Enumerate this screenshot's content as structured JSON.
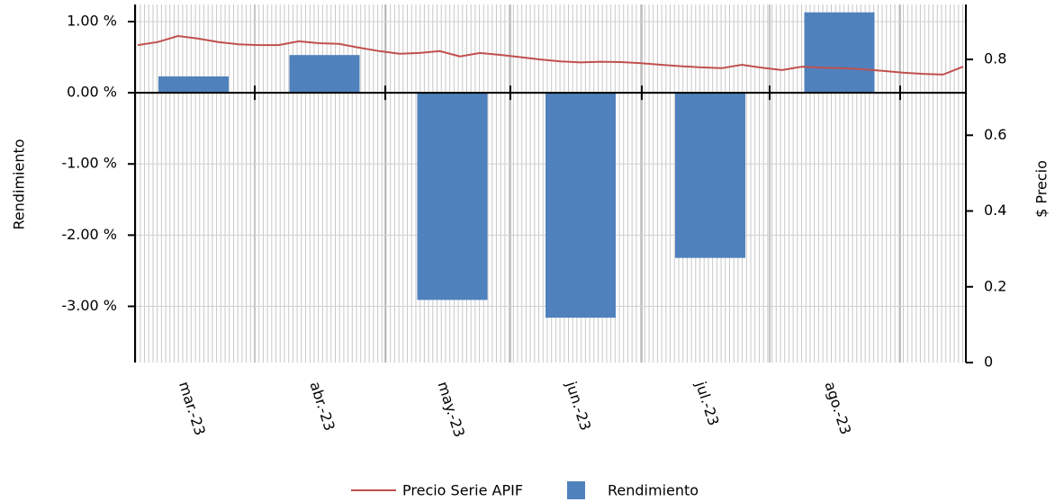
{
  "chart_data": {
    "type": "bar",
    "categories": [
      "mar.-23",
      "abr.-23",
      "may.-23",
      "jun.-23",
      "jul.-23",
      "ago.-23"
    ],
    "series": [
      {
        "name": "Rendimiento",
        "color": "#4f81bd",
        "values": [
          0.23,
          0.53,
          -2.91,
          -3.16,
          -2.32,
          1.13
        ]
      }
    ],
    "overlay": {
      "type": "line",
      "name": "Precio Serie APIF",
      "color": "#c0504d",
      "axis": "y2",
      "values": [
        0.838,
        0.846,
        0.862,
        0.855,
        0.846,
        0.84,
        0.838,
        0.838,
        0.848,
        0.843,
        0.841,
        0.831,
        0.822,
        0.815,
        0.817,
        0.822,
        0.808,
        0.817,
        0.812,
        0.806,
        0.8,
        0.795,
        0.792,
        0.794,
        0.793,
        0.79,
        0.786,
        0.782,
        0.779,
        0.777,
        0.786,
        0.778,
        0.772,
        0.781,
        0.778,
        0.777,
        0.774,
        0.77,
        0.765,
        0.762,
        0.76,
        0.781
      ]
    },
    "y_label": "Rendimiento",
    "y2_label": "$ Precio",
    "ylim": [
      -3.79,
      1.24
    ],
    "yticks": [
      {
        "value": -3,
        "label": "-3.00 %"
      },
      {
        "value": -2,
        "label": "-2.00 %"
      },
      {
        "value": -1,
        "label": "-1.00 %"
      },
      {
        "value": 0,
        "label": "0.00 %"
      },
      {
        "value": 1,
        "label": "1.00 %"
      }
    ],
    "y2lim": [
      0,
      0.945
    ],
    "y2ticks": [
      0,
      0.2,
      0.4,
      0.6,
      0.8
    ],
    "grid": true
  }
}
